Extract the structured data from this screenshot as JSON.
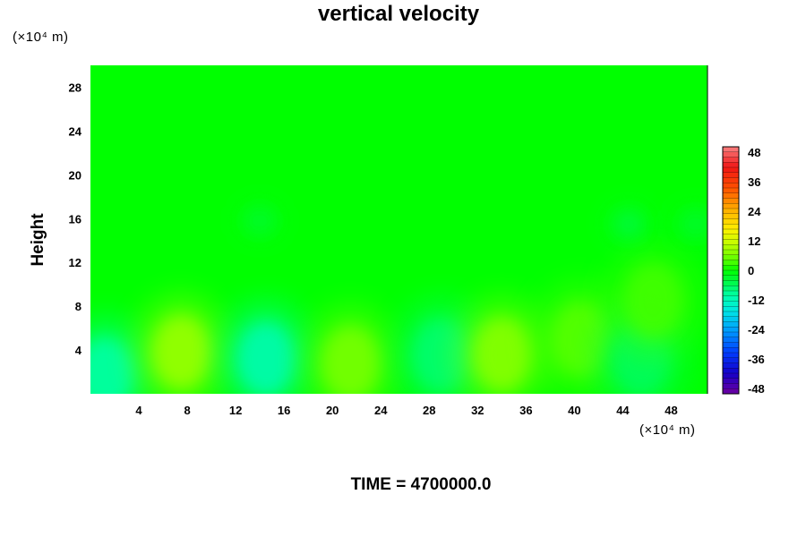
{
  "chart_data": {
    "type": "heatmap",
    "title": "vertical velocity",
    "ylabel": "Height",
    "x_unit_label": "(×10⁴ m)",
    "y_unit_label": "(×10⁴ m)",
    "caption": "TIME = 4700000.0",
    "xlim": [
      0,
      51
    ],
    "ylim": [
      0,
      30
    ],
    "x_ticks": [
      4,
      8,
      12,
      16,
      20,
      24,
      28,
      32,
      36,
      40,
      44,
      48
    ],
    "y_ticks": [
      4,
      8,
      12,
      16,
      20,
      24,
      28
    ],
    "colorbar": {
      "range": [
        -48,
        48
      ],
      "ticks": [
        48,
        36,
        24,
        12,
        0,
        -12,
        -24,
        -36,
        -48
      ]
    },
    "field_features": [
      {
        "x": 1.2,
        "y": 1.8,
        "value": -10
      },
      {
        "x": 7.5,
        "y": 3.8,
        "value": 8
      },
      {
        "x": 14.5,
        "y": 3.2,
        "value": -11
      },
      {
        "x": 21.5,
        "y": 2.8,
        "value": 6
      },
      {
        "x": 29,
        "y": 3.5,
        "value": -7
      },
      {
        "x": 34,
        "y": 3.6,
        "value": 7
      },
      {
        "x": 40.5,
        "y": 5.0,
        "value": 4
      },
      {
        "x": 45.5,
        "y": 3.2,
        "value": -6
      },
      {
        "x": 46.5,
        "y": 8.5,
        "value": 3
      },
      {
        "x": 14,
        "y": 15.8,
        "value": -3
      },
      {
        "x": 44.5,
        "y": 15.5,
        "value": -4
      },
      {
        "x": 50,
        "y": 15.5,
        "value": -3
      }
    ]
  }
}
